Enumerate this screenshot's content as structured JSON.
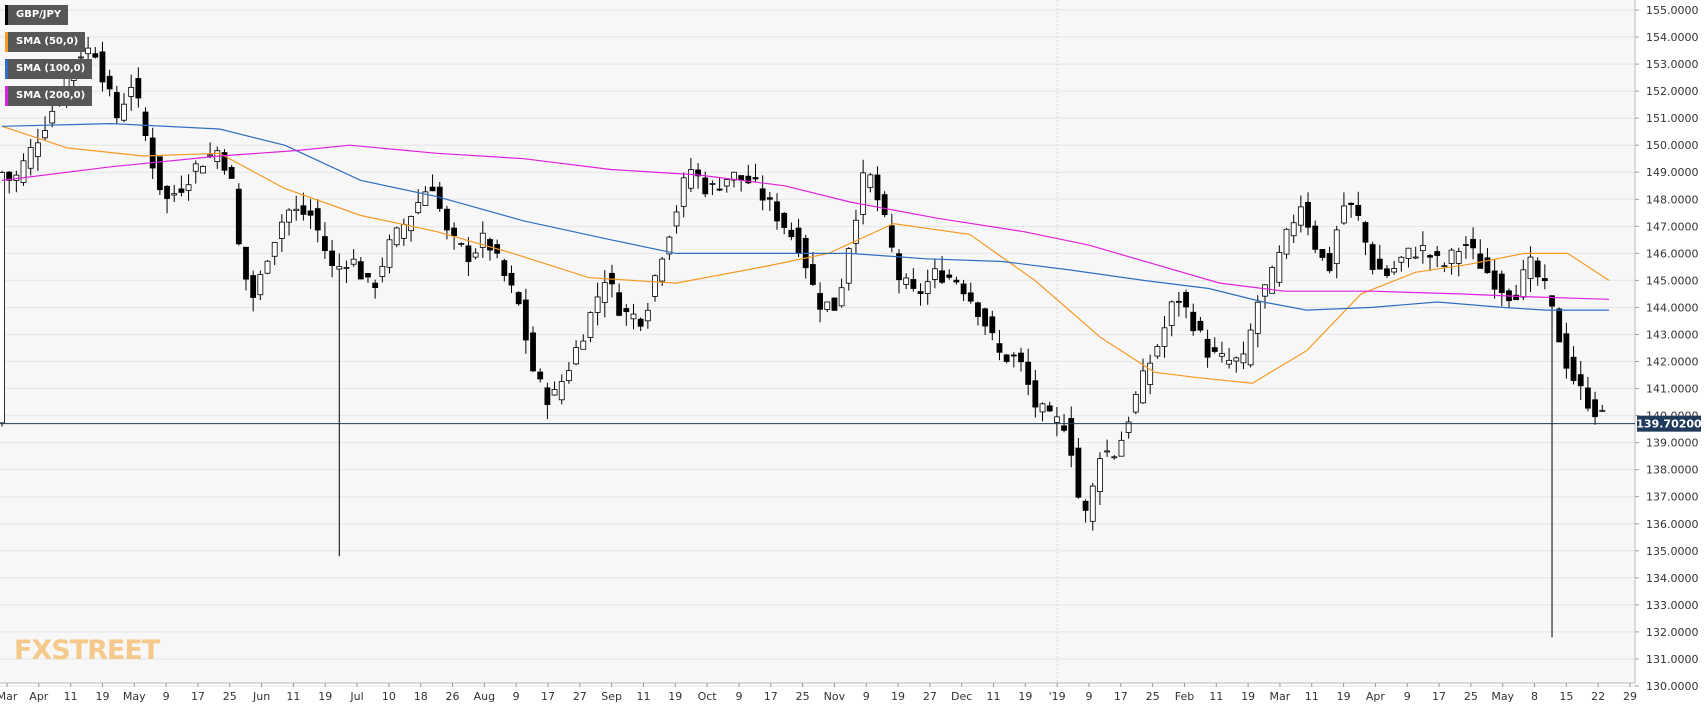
{
  "legend": [
    {
      "label": "GBP/JPY",
      "color": "#000000"
    },
    {
      "label": "SMA (50,0)",
      "color": "#f59a23"
    },
    {
      "label": "SMA (100,0)",
      "color": "#2f6ec1"
    },
    {
      "label": "SMA (200,0)",
      "color": "#e022e0"
    }
  ],
  "logo": {
    "text_a": "FX",
    "text_b": "STREET"
  },
  "price_label": "139.70200",
  "chart_data": {
    "type": "candlestick",
    "pair": "GBP/JPY",
    "timeframe_note": "daily",
    "ylim": [
      130.0,
      155.0
    ],
    "current_price": 139.702,
    "y_ticks": [
      "155.0000",
      "154.0000",
      "153.0000",
      "152.0000",
      "151.0000",
      "150.0000",
      "149.0000",
      "148.0000",
      "147.0000",
      "146.0000",
      "145.0000",
      "144.0000",
      "143.0000",
      "142.0000",
      "141.0000",
      "140.0000",
      "139.0000",
      "138.0000",
      "137.0000",
      "136.0000",
      "135.0000",
      "134.0000",
      "133.0000",
      "132.0000",
      "131.0000",
      "130.0000"
    ],
    "x_ticks": [
      "Mar",
      "Apr",
      "11",
      "19",
      "May",
      "9",
      "17",
      "25",
      "Jun",
      "11",
      "19",
      "Jul",
      "10",
      "18",
      "26",
      "Aug",
      "9",
      "17",
      "27",
      "Sep",
      "11",
      "19",
      "Oct",
      "9",
      "17",
      "25",
      "Nov",
      "9",
      "19",
      "27",
      "Dec",
      "11",
      "19",
      "'19",
      "9",
      "17",
      "25",
      "Feb",
      "11",
      "19",
      "Mar",
      "11",
      "19",
      "Apr",
      "9",
      "17",
      "25",
      "May",
      "8",
      "15",
      "22",
      "29"
    ],
    "price_path": [
      [
        0,
        149.0
      ],
      [
        10,
        148.6
      ],
      [
        25,
        149.7
      ],
      [
        45,
        151.2
      ],
      [
        70,
        153.4
      ],
      [
        85,
        153.6
      ],
      [
        105,
        151.0
      ],
      [
        120,
        152.4
      ],
      [
        135,
        149.8
      ],
      [
        150,
        147.9
      ],
      [
        165,
        148.5
      ],
      [
        180,
        149.3
      ],
      [
        198,
        149.8
      ],
      [
        210,
        149.0
      ],
      [
        220,
        145.5
      ],
      [
        232,
        144.3
      ],
      [
        245,
        146.1
      ],
      [
        262,
        147.6
      ],
      [
        285,
        147.4
      ],
      [
        305,
        145.3
      ],
      [
        320,
        145.9
      ],
      [
        340,
        144.6
      ],
      [
        355,
        146.2
      ],
      [
        375,
        147.4
      ],
      [
        395,
        148.7
      ],
      [
        410,
        146.6
      ],
      [
        430,
        145.9
      ],
      [
        445,
        146.6
      ],
      [
        460,
        145.3
      ],
      [
        475,
        144.1
      ],
      [
        490,
        141.4
      ],
      [
        505,
        140.5
      ],
      [
        520,
        141.7
      ],
      [
        540,
        143.6
      ],
      [
        555,
        145.2
      ],
      [
        570,
        143.8
      ],
      [
        590,
        143.6
      ],
      [
        605,
        145.8
      ],
      [
        620,
        147.6
      ],
      [
        632,
        149.2
      ],
      [
        650,
        148.3
      ],
      [
        670,
        148.9
      ],
      [
        690,
        148.6
      ],
      [
        715,
        147.3
      ],
      [
        735,
        146.2
      ],
      [
        750,
        144.2
      ],
      [
        768,
        144.0
      ],
      [
        780,
        146.6
      ],
      [
        795,
        149.2
      ],
      [
        810,
        147.4
      ],
      [
        825,
        145.1
      ],
      [
        840,
        144.4
      ],
      [
        860,
        145.3
      ],
      [
        880,
        145.0
      ],
      [
        900,
        143.8
      ],
      [
        918,
        142.2
      ],
      [
        935,
        142.1
      ],
      [
        950,
        140.4
      ],
      [
        965,
        139.8
      ],
      [
        980,
        139.7
      ],
      [
        990,
        137.0
      ],
      [
        998,
        136.2
      ],
      [
        1010,
        138.7
      ],
      [
        1025,
        138.6
      ],
      [
        1040,
        140.4
      ],
      [
        1055,
        141.9
      ],
      [
        1068,
        143.1
      ],
      [
        1080,
        144.5
      ],
      [
        1095,
        143.5
      ],
      [
        1110,
        142.3
      ],
      [
        1125,
        142.0
      ],
      [
        1142,
        142.0
      ],
      [
        1155,
        144.2
      ],
      [
        1170,
        145.3
      ],
      [
        1185,
        147.0
      ],
      [
        1195,
        147.9
      ],
      [
        1208,
        146.3
      ],
      [
        1220,
        145.3
      ],
      [
        1232,
        147.8
      ],
      [
        1245,
        147.6
      ],
      [
        1260,
        145.6
      ],
      [
        1275,
        145.2
      ],
      [
        1290,
        145.9
      ],
      [
        1305,
        146.2
      ],
      [
        1325,
        145.5
      ],
      [
        1345,
        146.4
      ],
      [
        1360,
        145.6
      ],
      [
        1375,
        144.9
      ],
      [
        1390,
        144.4
      ],
      [
        1405,
        145.6
      ],
      [
        1420,
        144.6
      ],
      [
        1430,
        143.2
      ],
      [
        1440,
        141.8
      ],
      [
        1452,
        140.9
      ],
      [
        1465,
        140.2
      ],
      [
        1478,
        139.7
      ]
    ],
    "spikes": [
      {
        "x_index": 47,
        "low": 134.8
      },
      {
        "x_index": 216,
        "low": 131.8
      }
    ],
    "series": [
      {
        "name": "SMA (50,0)",
        "color": "#f59a23",
        "points": [
          [
            0,
            150.7
          ],
          [
            60,
            149.9
          ],
          [
            130,
            149.6
          ],
          [
            200,
            149.7
          ],
          [
            260,
            148.4
          ],
          [
            330,
            147.4
          ],
          [
            400,
            146.8
          ],
          [
            470,
            146.0
          ],
          [
            540,
            145.1
          ],
          [
            620,
            144.9
          ],
          [
            700,
            145.5
          ],
          [
            760,
            146.0
          ],
          [
            820,
            147.1
          ],
          [
            890,
            146.7
          ],
          [
            950,
            145.0
          ],
          [
            1010,
            142.9
          ],
          [
            1060,
            141.6
          ],
          [
            1100,
            141.4
          ],
          [
            1150,
            141.2
          ],
          [
            1200,
            142.4
          ],
          [
            1250,
            144.5
          ],
          [
            1300,
            145.3
          ],
          [
            1350,
            145.6
          ],
          [
            1400,
            146.0
          ],
          [
            1440,
            146.0
          ],
          [
            1478,
            145.0
          ]
        ]
      },
      {
        "name": "SMA (100,0)",
        "color": "#2f6ec1",
        "points": [
          [
            0,
            150.7
          ],
          [
            100,
            150.8
          ],
          [
            200,
            150.6
          ],
          [
            260,
            150.0
          ],
          [
            330,
            148.7
          ],
          [
            400,
            148.1
          ],
          [
            480,
            147.2
          ],
          [
            560,
            146.5
          ],
          [
            620,
            146.0
          ],
          [
            700,
            146.0
          ],
          [
            780,
            146.0
          ],
          [
            850,
            145.8
          ],
          [
            920,
            145.7
          ],
          [
            980,
            145.4
          ],
          [
            1050,
            145.0
          ],
          [
            1110,
            144.7
          ],
          [
            1160,
            144.2
          ],
          [
            1200,
            143.9
          ],
          [
            1260,
            144.0
          ],
          [
            1320,
            144.2
          ],
          [
            1380,
            144.0
          ],
          [
            1420,
            143.9
          ],
          [
            1478,
            143.9
          ]
        ]
      },
      {
        "name": "SMA (200,0)",
        "color": "#e022e0",
        "points": [
          [
            0,
            148.7
          ],
          [
            100,
            149.2
          ],
          [
            200,
            149.6
          ],
          [
            270,
            149.8
          ],
          [
            320,
            150.0
          ],
          [
            400,
            149.7
          ],
          [
            480,
            149.5
          ],
          [
            560,
            149.1
          ],
          [
            640,
            148.9
          ],
          [
            720,
            148.5
          ],
          [
            780,
            147.9
          ],
          [
            860,
            147.3
          ],
          [
            940,
            146.8
          ],
          [
            1000,
            146.3
          ],
          [
            1060,
            145.6
          ],
          [
            1120,
            144.9
          ],
          [
            1180,
            144.6
          ],
          [
            1260,
            144.6
          ],
          [
            1340,
            144.5
          ],
          [
            1400,
            144.4
          ],
          [
            1478,
            144.3
          ]
        ]
      }
    ]
  }
}
